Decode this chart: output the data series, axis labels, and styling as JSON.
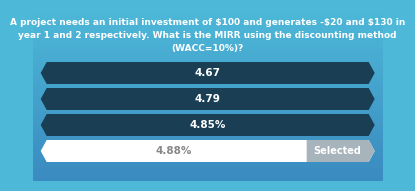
{
  "title_lines": [
    "A project needs an initial investment of $100 and generates -$20 and $130 in",
    "year 1 and 2 respectively. What is the MIRR using the discounting method",
    "(WACC=10%)?"
  ],
  "options": [
    "4.67",
    "4.79",
    "4.85%",
    "4.88%"
  ],
  "selected_index": 3,
  "bg_color_top": "#4db8d8",
  "bg_color_bottom": "#3a8abf",
  "option_dark_color": "#1a3f55",
  "option_selected_bg": "#ffffff",
  "selected_badge_color": "#a8b4bc",
  "selected_badge_text": "Selected",
  "text_color_title": "#ffffff",
  "text_color_options": "#ffffff",
  "text_color_selected": "#888888",
  "title_fontsize": 6.5,
  "option_fontsize": 7.5,
  "badge_fontsize": 7.0
}
